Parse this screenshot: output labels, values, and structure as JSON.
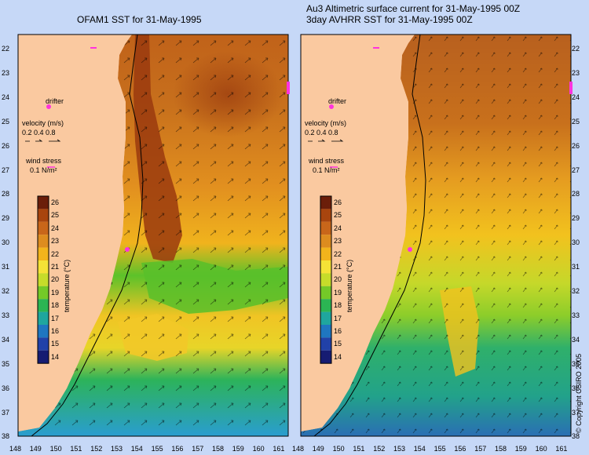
{
  "panel_left": {
    "title": "OFAM1 SST for 31-May-1995",
    "legend": {
      "drifter": "drifter",
      "velocity_label": "velocity (m/s)",
      "velocity_values": "0.2 0.4 0.8",
      "wind_label": "wind stress",
      "wind_value": "0.1 N/m²"
    }
  },
  "panel_right": {
    "title_line1": "Au3 Altimetric surface current for 31-May-1995 00Z",
    "title_line2": "3day AVHRR SST for 31-May-1995 00Z",
    "legend": {
      "drifter": "drifter",
      "velocity_label": "velocity (m/s)",
      "velocity_values": "0.2 0.4 0.8",
      "wind_label": "wind stress",
      "wind_value": "0.1 N/m²"
    },
    "copyright": "© Copyright CSIRO 2005"
  },
  "lat_labels": [
    "22",
    "23",
    "24",
    "25",
    "26",
    "27",
    "28",
    "29",
    "30",
    "31",
    "32",
    "33",
    "34",
    "35",
    "36",
    "37",
    "38"
  ],
  "lon_labels": [
    "148",
    "149",
    "150",
    "151",
    "152",
    "153",
    "154",
    "155",
    "156",
    "157",
    "158",
    "159",
    "160",
    "161"
  ],
  "colorbar": {
    "ticks": [
      "26",
      "25",
      "24",
      "23",
      "22",
      "21",
      "20",
      "19",
      "18",
      "17",
      "16",
      "15",
      "14"
    ],
    "title": "temperature (°C)",
    "colors": [
      "#6b1e0a",
      "#a8450e",
      "#c8661a",
      "#dd8c1f",
      "#f2b41c",
      "#f5e236",
      "#c6dc2a",
      "#74c928",
      "#2bb553",
      "#1fa69e",
      "#1f76c0",
      "#2141a8",
      "#161c72"
    ]
  },
  "colors": {
    "land": "#fac9a0",
    "background": "#c6d8f7",
    "drifter_marker": "#ff33dd"
  }
}
